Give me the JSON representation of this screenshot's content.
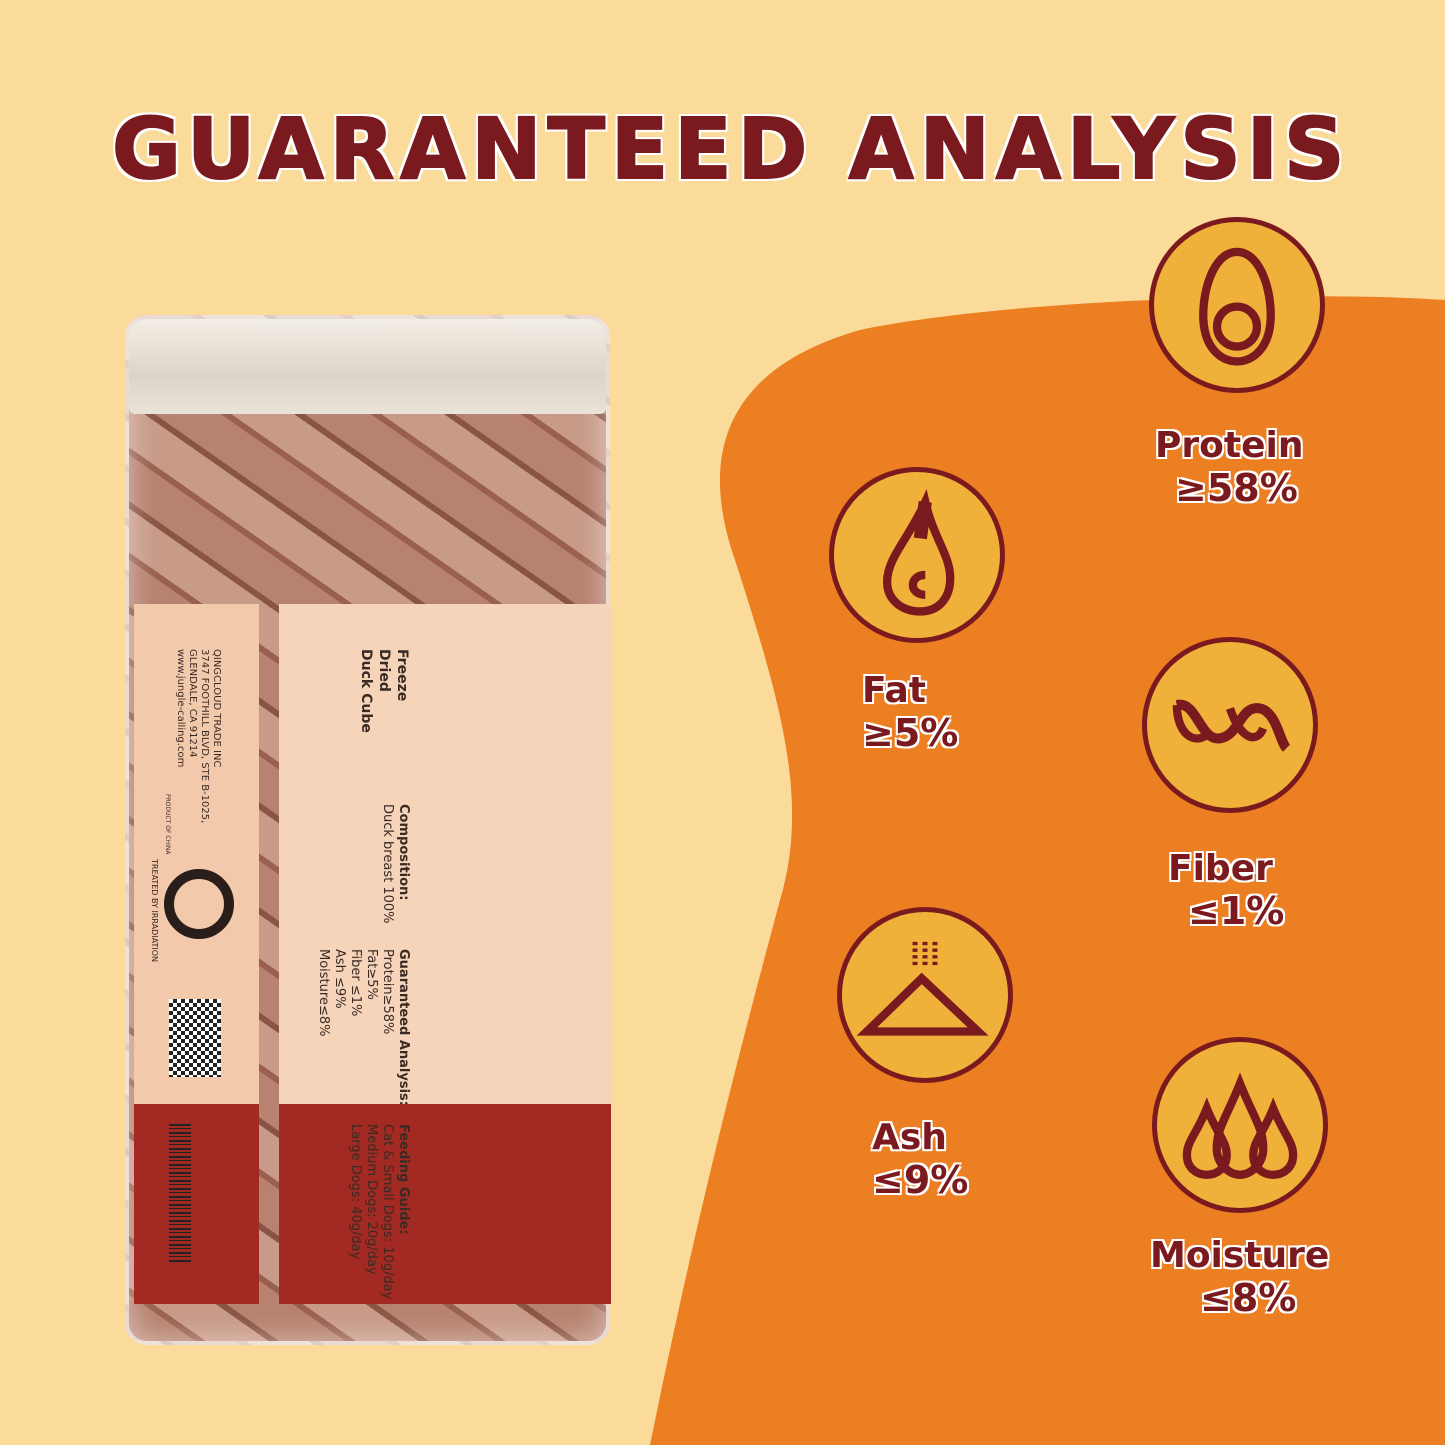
{
  "title": "GUARANTEED ANALYSIS",
  "colors": {
    "background": "#fbdb9a",
    "blob": "#ec7f22",
    "icon_circle": "#f0b13a",
    "text": "#7a1a1e"
  },
  "nutrients": [
    {
      "name": "Protein",
      "value": "≥58%",
      "icon": "egg-icon"
    },
    {
      "name": "Fat",
      "value": "≥5%",
      "icon": "oil-drop-icon"
    },
    {
      "name": "Fiber",
      "value": "≤1%",
      "icon": "fiber-strand-icon"
    },
    {
      "name": "Ash",
      "value": "≤9%",
      "icon": "ash-pile-icon"
    },
    {
      "name": "Moisture",
      "value": "≤8%",
      "icon": "water-drops-icon"
    }
  ],
  "jar_label": {
    "product": "Freeze\nDried\nDuck Cube",
    "composition_title": "Composition:",
    "composition": "Duck breast 100%",
    "analysis_title": "Guaranteed Analysis:",
    "analysis": "Protein≥58%\nFat≥5%\nFiber ≤1%\nAsh ≤9%\nMoisture≤8%",
    "feeding_title": "Feeding Guide:",
    "feeding": "Cat & Small Dogs: 10g/day\nMedium Dogs: 20g/day\nLarge Dogs: 40g/day",
    "company": "QINGCLOUD TRADE INC\n3747 FOOTHILL BLVD, STE B-1025,\nGLENDALE, CA 91214\nwww.jungle-calling.com",
    "origin": "PRODUCT OF CHINA",
    "irradiation": "TREATED BY IRRADIATION"
  }
}
